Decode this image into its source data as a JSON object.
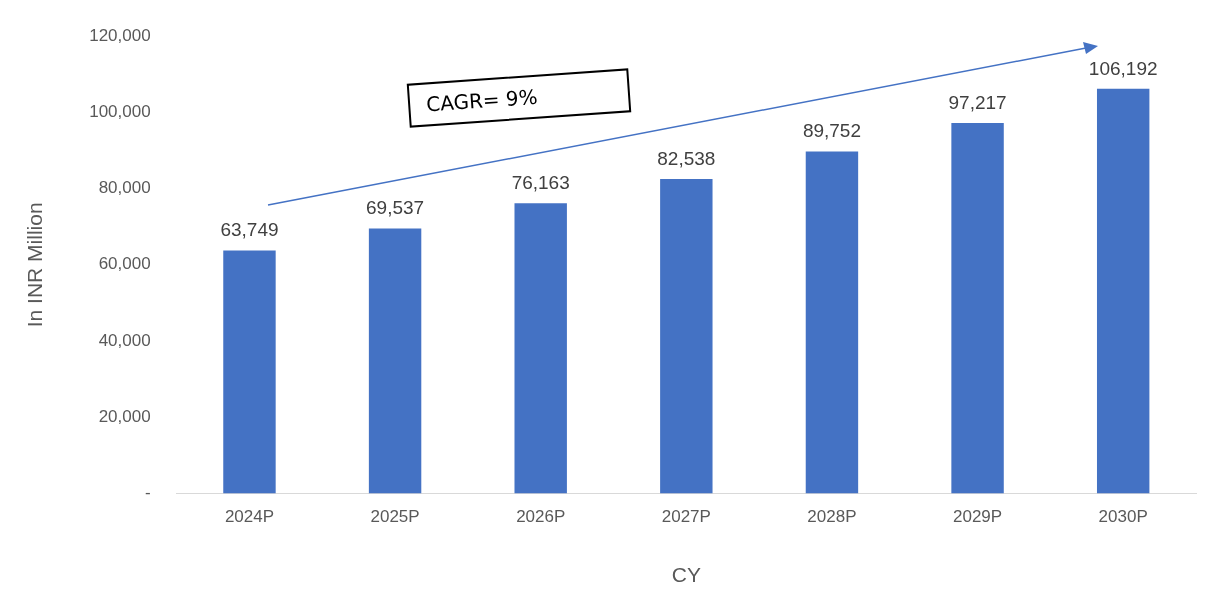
{
  "chart_data": {
    "type": "bar",
    "xlabel": "CY",
    "ylabel": "In INR Million",
    "categories": [
      "2024P",
      "2025P",
      "2026P",
      "2027P",
      "2028P",
      "2029P",
      "2030P"
    ],
    "values": [
      63749,
      69537,
      76163,
      82538,
      89752,
      97217,
      106192
    ],
    "value_labels": [
      "63,749",
      "69,537",
      "76,163",
      "82,538",
      "89,752",
      "97,217",
      "106,192"
    ],
    "color": "#4472c4",
    "ylim": [
      0,
      120000
    ],
    "yticks": [
      {
        "value": 0,
        "label": "-"
      },
      {
        "value": 20000,
        "label": "20,000"
      },
      {
        "value": 40000,
        "label": "40,000"
      },
      {
        "value": 60000,
        "label": "60,000"
      },
      {
        "value": 80000,
        "label": "80,000"
      },
      {
        "value": 100000,
        "label": "100,000"
      },
      {
        "value": 120000,
        "label": "120,000"
      }
    ],
    "grid": false,
    "legend": false,
    "annotations": [
      "CAGR= 9%"
    ]
  }
}
